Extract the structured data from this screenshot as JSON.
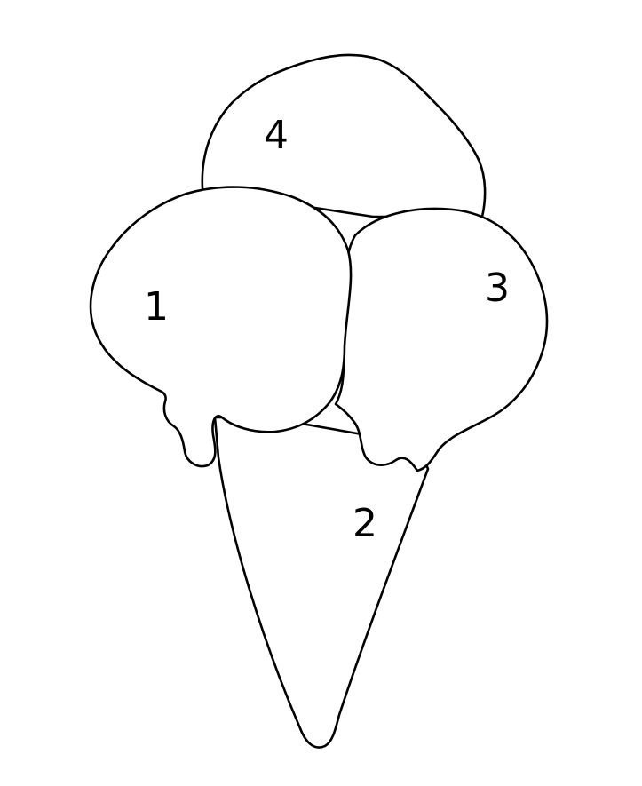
{
  "regions": [
    {
      "id": "scoop-left",
      "number": "1"
    },
    {
      "id": "cone",
      "number": "2"
    },
    {
      "id": "scoop-right",
      "number": "3"
    },
    {
      "id": "scoop-top",
      "number": "4"
    }
  ],
  "colors": {
    "line": "#000000",
    "fill": "#ffffff",
    "background": "#ffffff"
  }
}
